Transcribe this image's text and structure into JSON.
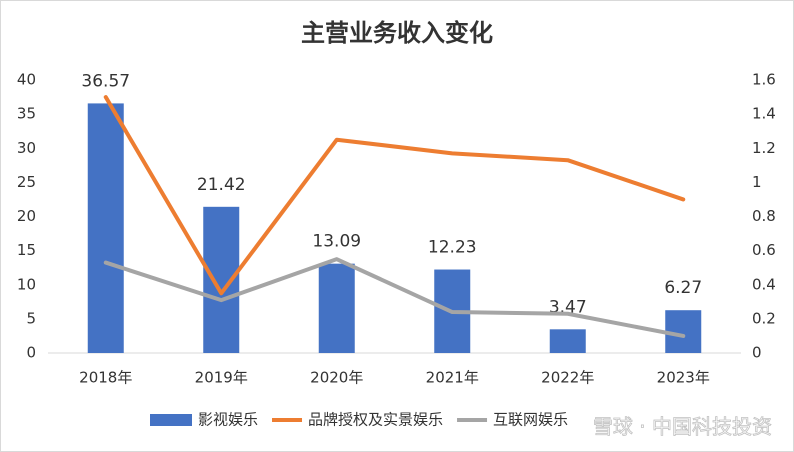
{
  "chart_data": {
    "type": "bar",
    "title": "主营业务收入变化",
    "categories": [
      "2018年",
      "2019年",
      "2020年",
      "2021年",
      "2022年",
      "2023年"
    ],
    "series": [
      {
        "name": "影视娱乐",
        "color": "#4472c4",
        "type": "bar",
        "values": [
          36.57,
          21.42,
          13.09,
          12.23,
          3.47,
          6.27
        ],
        "data_labels": true
      },
      {
        "name": "品牌授权及实景娱乐",
        "color": "#ed7d31",
        "type": "line",
        "axis": "y2",
        "values": [
          1.5,
          0.35,
          1.25,
          1.17,
          1.13,
          0.9
        ]
      },
      {
        "name": "互联网娱乐",
        "color": "#a5a5a5",
        "type": "line",
        "axis": "y2",
        "values": [
          0.53,
          0.31,
          0.55,
          0.24,
          0.23,
          0.1
        ]
      }
    ],
    "ylim": [
      0,
      40
    ],
    "yticks": [
      0,
      5,
      10,
      15,
      20,
      25,
      30,
      35,
      40
    ],
    "y2lim": [
      0,
      1.6
    ],
    "y2ticks": [
      0,
      0.2,
      0.4,
      0.6,
      0.8,
      1,
      1.2,
      1.4,
      1.6
    ],
    "legend": "bottom",
    "watermark": "雪球 · 中国科技投资"
  }
}
